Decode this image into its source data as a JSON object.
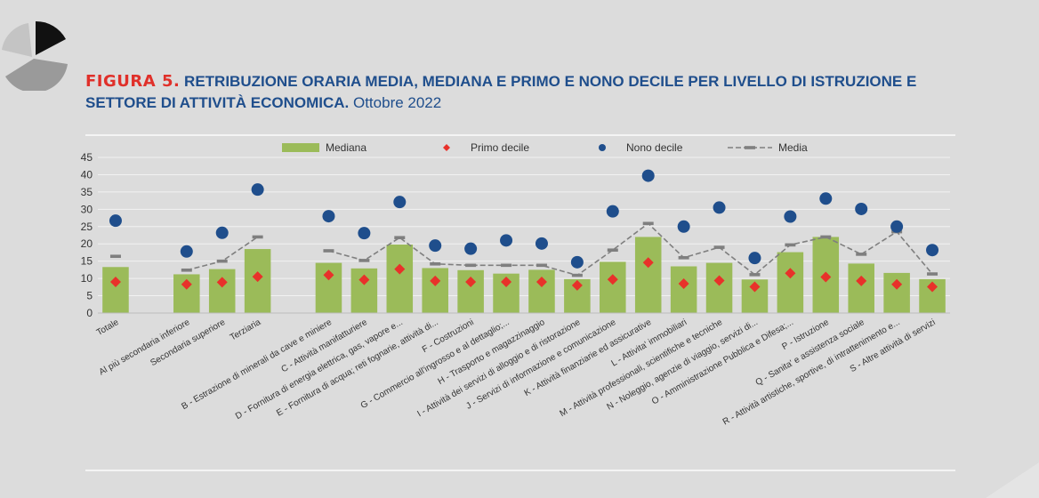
{
  "title": {
    "label": "FIGURA 5.",
    "main": "RETRIBUZIONE ORARIA MEDIA, MEDIANA E PRIMO E NONO DECILE PER LIVELLO DI ISTRUZIONE E SETTORE DI ATTIVITÀ ECONOMICA.",
    "date": "Ottobre 2022"
  },
  "colors": {
    "bar": "#9bbb59",
    "primo": "#e8312a",
    "nono": "#1f4e8c",
    "media": "#7f7f7f",
    "title": "#1f4e8c",
    "title_label": "#e0302a"
  },
  "chart_data": {
    "type": "bar",
    "categories": [
      "Totale",
      "",
      "Al più secondaria inferiore",
      "Secondaria superiore",
      "Terziaria",
      "",
      "B - Estrazione di minerali da cave e miniere",
      "C - Attività manifatturiere",
      "D - Fornitura di energia elettrica, gas, vapore e...",
      "E - Fornitura di acqua; reti fognarie, attività di...",
      "F - Costruzioni",
      "G - Commercio all'ingrosso e al dettaglio;...",
      "H - Trasporto e magazzinaggio",
      "I - Attività dei servizi di alloggio e di ristorazione",
      "J - Servizi di informazione e comunicazione",
      "K - Attività finanziarie ed assicurative",
      "L - Attivita' immobiliari",
      "M - Attività professionali, scientifiche e tecniche",
      "N - Noleggio, agenzie di viaggio, servizi di...",
      "O - Amministrazione Pubblica e Difesa;...",
      "P - Istruzione",
      "Q - Sanita' e assistenza sociale",
      "R - Attività artistiche, sportive, di intrattenimento e...",
      "S - Altre attività di servizi"
    ],
    "series": [
      {
        "name": "Mediana",
        "type": "bar",
        "values": [
          13.3,
          null,
          11.2,
          12.7,
          18.5,
          null,
          14.5,
          12.9,
          19.8,
          13.0,
          12.4,
          11.4,
          12.5,
          9.8,
          14.8,
          22.0,
          13.5,
          14.5,
          9.7,
          17.6,
          22.0,
          14.3,
          11.6,
          9.8
        ]
      },
      {
        "name": "Primo decile",
        "type": "scatter",
        "values": [
          9.0,
          null,
          8.3,
          8.9,
          10.5,
          null,
          11.0,
          9.6,
          12.7,
          9.3,
          9.0,
          9.0,
          9.0,
          8.0,
          9.7,
          14.6,
          8.5,
          9.4,
          7.6,
          11.5,
          10.4,
          9.3,
          8.3,
          7.6
        ]
      },
      {
        "name": "Nono decile",
        "type": "scatter",
        "values": [
          26.7,
          null,
          17.8,
          23.2,
          35.7,
          null,
          28.0,
          23.1,
          32.1,
          19.5,
          18.6,
          21.0,
          20.1,
          14.7,
          29.4,
          39.7,
          25.0,
          30.5,
          15.9,
          27.9,
          33.1,
          30.1,
          25.0,
          18.2
        ]
      },
      {
        "name": "Media",
        "type": "line",
        "values": [
          16.4,
          null,
          12.4,
          15.0,
          22.0,
          null,
          18.0,
          15.2,
          21.8,
          14.2,
          13.8,
          13.8,
          13.8,
          10.9,
          18.2,
          25.9,
          16.0,
          19.0,
          11.1,
          19.7,
          22.0,
          17.0,
          23.5,
          11.3
        ]
      }
    ],
    "ylim": [
      0,
      45
    ],
    "yticks": [
      0,
      5,
      10,
      15,
      20,
      25,
      30,
      35,
      40,
      45
    ],
    "grid": true,
    "legend_position": "top"
  }
}
